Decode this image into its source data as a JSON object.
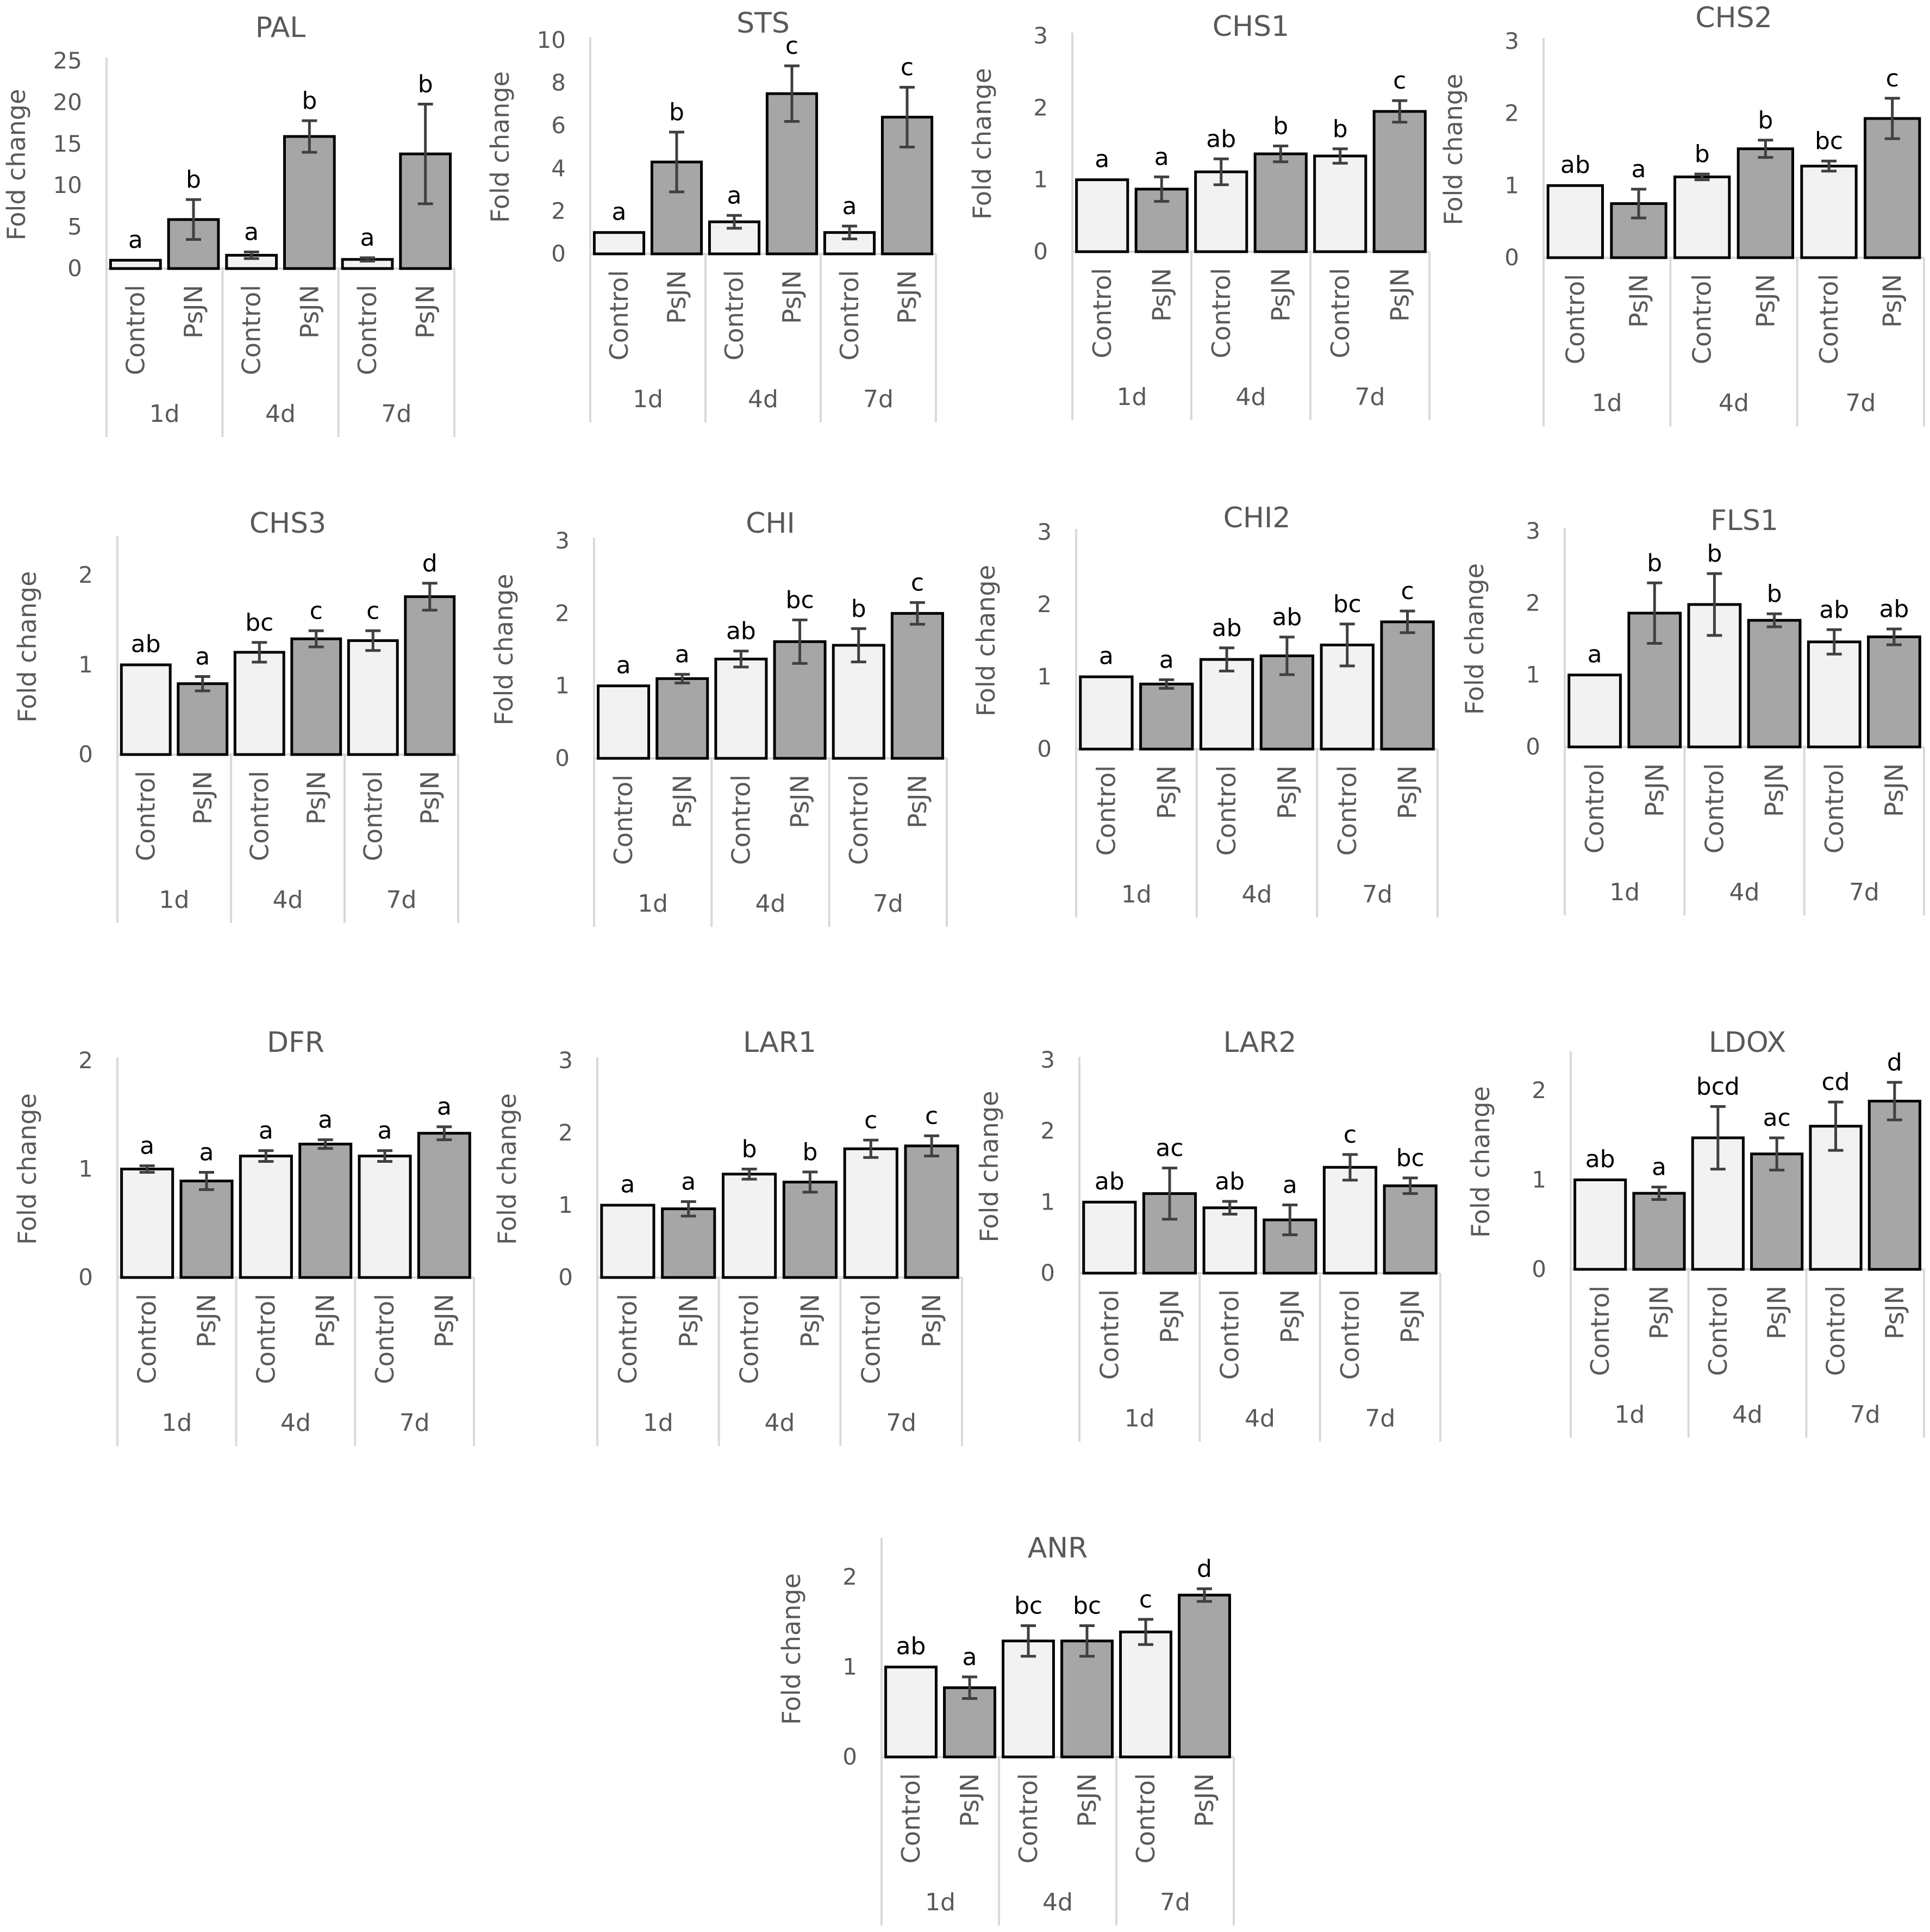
{
  "figure": {
    "colors": {
      "control": "#f2f2f2",
      "psjn": "#a6a6a6",
      "bar_edge": "#000000",
      "errbar": "#404040",
      "axis": "#d9d9d9",
      "text": "#595959"
    },
    "category_labels": [
      "Control",
      "PsJN"
    ],
    "group_labels": [
      "1d",
      "4d",
      "7d"
    ],
    "y_axis_label": "Fold change"
  },
  "chart_data": [
    {
      "type": "bar",
      "title": "PAL",
      "ylabel": "Fold change",
      "ylim": [
        0,
        25
      ],
      "yticks": [
        0,
        5,
        10,
        15,
        20,
        25
      ],
      "groups": [
        "1d",
        "4d",
        "7d"
      ],
      "categories": [
        "Control",
        "PsJN",
        "Control",
        "PsJN",
        "Control",
        "PsJN"
      ],
      "values": [
        1,
        5.9,
        1.6,
        15.9,
        1.1,
        13.8
      ],
      "errors": [
        0.05,
        2.4,
        0.4,
        1.9,
        0.2,
        6.0
      ],
      "letters": [
        "a",
        "b",
        "a",
        "b",
        "a",
        "b"
      ]
    },
    {
      "type": "bar",
      "title": "STS",
      "ylabel": "Fold change",
      "ylim": [
        0,
        10
      ],
      "yticks": [
        0,
        2,
        4,
        6,
        8,
        10
      ],
      "groups": [
        "1d",
        "4d",
        "7d"
      ],
      "categories": [
        "Control",
        "PsJN",
        "Control",
        "PsJN",
        "Control",
        "PsJN"
      ],
      "values": [
        1,
        4.3,
        1.5,
        7.5,
        1.0,
        6.4
      ],
      "errors": [
        0.03,
        1.4,
        0.3,
        1.3,
        0.3,
        1.4
      ],
      "letters": [
        "a",
        "b",
        "a",
        "c",
        "a",
        "c"
      ]
    },
    {
      "type": "bar",
      "title": "CHS1",
      "ylabel": "Fold change",
      "ylim": [
        0,
        3
      ],
      "yticks": [
        0,
        1,
        2,
        3
      ],
      "groups": [
        "1d",
        "4d",
        "7d"
      ],
      "categories": [
        "Control",
        "PsJN",
        "Control",
        "PsJN",
        "Control",
        "PsJN"
      ],
      "values": [
        1,
        0.87,
        1.11,
        1.36,
        1.33,
        1.95
      ],
      "errors": [
        0.01,
        0.17,
        0.18,
        0.11,
        0.1,
        0.15
      ],
      "letters": [
        "a",
        "a",
        "ab",
        "b",
        "b",
        "c"
      ]
    },
    {
      "type": "bar",
      "title": "CHS2",
      "ylabel": "Fold change",
      "ylim": [
        0,
        3
      ],
      "yticks": [
        0,
        1,
        2,
        3
      ],
      "groups": [
        "1d",
        "4d",
        "7d"
      ],
      "categories": [
        "Control",
        "PsJN",
        "Control",
        "PsJN",
        "Control",
        "PsJN"
      ],
      "values": [
        1,
        0.75,
        1.12,
        1.51,
        1.27,
        1.93
      ],
      "errors": [
        0.01,
        0.2,
        0.04,
        0.12,
        0.07,
        0.28
      ],
      "letters": [
        "ab",
        "a",
        "b",
        "b",
        "bc",
        "c"
      ]
    },
    {
      "type": "bar",
      "title": "CHS3",
      "ylabel": "Fold change",
      "ylim": [
        0,
        2.4
      ],
      "yticks": [
        0,
        1,
        2
      ],
      "groups": [
        "1d",
        "4d",
        "7d"
      ],
      "categories": [
        "Control",
        "PsJN",
        "Control",
        "PsJN",
        "Control",
        "PsJN"
      ],
      "values": [
        1,
        0.79,
        1.14,
        1.29,
        1.27,
        1.76
      ],
      "errors": [
        0.01,
        0.08,
        0.11,
        0.09,
        0.11,
        0.15
      ],
      "letters": [
        "ab",
        "a",
        "bc",
        "c",
        "c",
        "d"
      ]
    },
    {
      "type": "bar",
      "title": "CHI",
      "ylabel": "Fold change",
      "ylim": [
        0,
        3
      ],
      "yticks": [
        0,
        1,
        2,
        3
      ],
      "groups": [
        "1d",
        "4d",
        "7d"
      ],
      "categories": [
        "Control",
        "PsJN",
        "Control",
        "PsJN",
        "Control",
        "PsJN"
      ],
      "values": [
        1,
        1.1,
        1.37,
        1.61,
        1.56,
        2.0
      ],
      "errors": [
        0.01,
        0.06,
        0.11,
        0.3,
        0.23,
        0.15
      ],
      "letters": [
        "a",
        "a",
        "ab",
        "bc",
        "b",
        "c"
      ]
    },
    {
      "type": "bar",
      "title": "CHI2",
      "ylabel": "Fold change",
      "ylim": [
        0,
        3
      ],
      "yticks": [
        0,
        1,
        2,
        3
      ],
      "groups": [
        "1d",
        "4d",
        "7d"
      ],
      "categories": [
        "Control",
        "PsJN",
        "Control",
        "PsJN",
        "Control",
        "PsJN"
      ],
      "values": [
        1,
        0.9,
        1.24,
        1.29,
        1.44,
        1.76
      ],
      "errors": [
        0.01,
        0.06,
        0.16,
        0.26,
        0.29,
        0.15
      ],
      "letters": [
        "a",
        "a",
        "ab",
        "ab",
        "bc",
        "c"
      ]
    },
    {
      "type": "bar",
      "title": "FLS1",
      "ylabel": "Fold change",
      "ylim": [
        0,
        3
      ],
      "yticks": [
        0,
        1,
        2,
        3
      ],
      "groups": [
        "1d",
        "4d",
        "7d"
      ],
      "categories": [
        "Control",
        "PsJN",
        "Control",
        "PsJN",
        "Control",
        "PsJN"
      ],
      "values": [
        1,
        1.86,
        1.98,
        1.76,
        1.46,
        1.53
      ],
      "errors": [
        0.01,
        0.42,
        0.43,
        0.09,
        0.17,
        0.11
      ],
      "letters": [
        "a",
        "b",
        "b",
        "b",
        "ab",
        "ab"
      ]
    },
    {
      "type": "bar",
      "title": "DFR",
      "ylabel": "Fold change",
      "ylim": [
        0,
        2
      ],
      "yticks": [
        0,
        1,
        2
      ],
      "groups": [
        "1d",
        "4d",
        "7d"
      ],
      "categories": [
        "Control",
        "PsJN",
        "Control",
        "PsJN",
        "Control",
        "PsJN"
      ],
      "values": [
        1,
        0.89,
        1.12,
        1.23,
        1.12,
        1.33
      ],
      "errors": [
        0.03,
        0.08,
        0.05,
        0.04,
        0.05,
        0.06
      ],
      "letters": [
        "a",
        "a",
        "a",
        "a",
        "a",
        "a"
      ]
    },
    {
      "type": "bar",
      "title": "LAR1",
      "ylabel": "Fold change",
      "ylim": [
        0,
        3
      ],
      "yticks": [
        0,
        1,
        2,
        3
      ],
      "groups": [
        "1d",
        "4d",
        "7d"
      ],
      "categories": [
        "Control",
        "PsJN",
        "Control",
        "PsJN",
        "Control",
        "PsJN"
      ],
      "values": [
        1,
        0.95,
        1.43,
        1.32,
        1.78,
        1.82
      ],
      "errors": [
        0.01,
        0.1,
        0.07,
        0.14,
        0.12,
        0.14
      ],
      "letters": [
        "a",
        "a",
        "b",
        "b",
        "c",
        "c"
      ]
    },
    {
      "type": "bar",
      "title": "LAR2",
      "ylabel": "Fold change",
      "ylim": [
        0,
        3
      ],
      "yticks": [
        0,
        1,
        2,
        3
      ],
      "groups": [
        "1d",
        "4d",
        "7d"
      ],
      "categories": [
        "Control",
        "PsJN",
        "Control",
        "PsJN",
        "Control",
        "PsJN"
      ],
      "values": [
        1,
        1.12,
        0.92,
        0.75,
        1.49,
        1.23
      ],
      "errors": [
        0.01,
        0.36,
        0.09,
        0.21,
        0.18,
        0.11
      ],
      "letters": [
        "ab",
        "ac",
        "ab",
        "a",
        "c",
        "bc"
      ]
    },
    {
      "type": "bar",
      "title": "LDOX",
      "ylabel": "Fold change",
      "ylim": [
        0,
        2.4
      ],
      "yticks": [
        0,
        1,
        2
      ],
      "groups": [
        "1d",
        "4d",
        "7d"
      ],
      "categories": [
        "Control",
        "PsJN",
        "Control",
        "PsJN",
        "Control",
        "PsJN"
      ],
      "values": [
        1,
        0.85,
        1.47,
        1.29,
        1.6,
        1.88
      ],
      "errors": [
        0.01,
        0.07,
        0.35,
        0.18,
        0.27,
        0.21
      ],
      "letters": [
        "ab",
        "a",
        "bcd",
        "ac",
        "cd",
        "d"
      ]
    },
    {
      "type": "bar",
      "title": "ANR",
      "ylabel": "Fold change",
      "ylim": [
        0,
        2.4
      ],
      "yticks": [
        0,
        1,
        2
      ],
      "groups": [
        "1d",
        "4d",
        "7d"
      ],
      "categories": [
        "Control",
        "PsJN",
        "Control",
        "PsJN",
        "Control",
        "PsJN"
      ],
      "values": [
        1,
        0.77,
        1.29,
        1.29,
        1.39,
        1.8
      ],
      "errors": [
        0.01,
        0.12,
        0.17,
        0.17,
        0.14,
        0.07
      ],
      "letters": [
        "ab",
        "a",
        "bc",
        "bc",
        "c",
        "d"
      ]
    }
  ]
}
